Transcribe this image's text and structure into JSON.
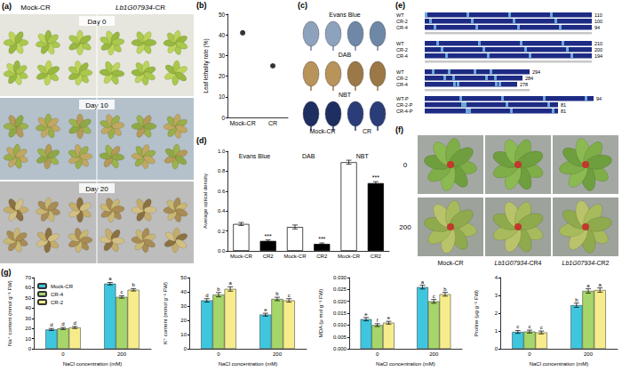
{
  "chart_data": [
    {
      "type": "scatter",
      "annotations": [
        "(b)"
      ],
      "categories": [
        "Mock-CR",
        "CR"
      ],
      "values": [
        41,
        25
      ],
      "color": "#000000",
      "marker": "circle",
      "ylabel": "Leaf lethality rate (%)",
      "ylim": [
        0,
        50
      ],
      "yticks": [
        0,
        10,
        20,
        30,
        40,
        50
      ],
      "grid": false
    },
    {
      "type": "bar",
      "annotations": [
        "(d)"
      ],
      "categories": [
        "Mock-CR",
        "CR2",
        "Mock-CR",
        "CR2",
        "Mock-CR",
        "CR2"
      ],
      "groups": [
        "Evans Blue",
        "DAB",
        "NBT"
      ],
      "values": [
        0.27,
        0.1,
        0.24,
        0.07,
        0.89,
        0.68
      ],
      "errors": [
        0.015,
        0.01,
        0.02,
        0.01,
        0.02,
        0.015
      ],
      "significance": [
        null,
        "***",
        null,
        "***",
        null,
        "***"
      ],
      "colors": [
        "#ffffff",
        "#000000",
        "#ffffff",
        "#000000",
        "#ffffff",
        "#000000"
      ],
      "ylabel": "Average optical density",
      "ylim": [
        0,
        1
      ],
      "yticks": [
        {
          "value": 0,
          "label": "0.0"
        },
        0.2,
        0.4,
        0.6,
        0.8,
        {
          "value": 1,
          "label": "1.0"
        }
      ],
      "grid": false
    },
    {
      "type": "bar",
      "annotations": [
        "(g)"
      ],
      "categories": [
        "0",
        "200"
      ],
      "xlabel": "NaCl concentration (mM)",
      "ylabel": "Na⁺ content (mmol g⁻¹ FW)",
      "ylim": [
        0,
        70
      ],
      "yticks": [
        0,
        10,
        20,
        30,
        40,
        50,
        60,
        70
      ],
      "legend": "upper left",
      "grid": false,
      "series": [
        {
          "name": "Mock-CR",
          "color": "#3fc6df",
          "values": [
            19,
            64
          ],
          "errors": [
            1,
            1.2
          ],
          "letters": [
            "d",
            "a"
          ]
        },
        {
          "name": "CR-4",
          "color": "#a6d66a",
          "values": [
            20,
            51
          ],
          "errors": [
            1,
            1.2
          ],
          "letters": [
            "d",
            "c"
          ]
        },
        {
          "name": "CR-2",
          "color": "#f6ec8c",
          "values": [
            21,
            58
          ],
          "errors": [
            1,
            1.2
          ],
          "letters": [
            "d",
            "b"
          ]
        }
      ]
    },
    {
      "type": "bar",
      "categories": [
        "0",
        "200"
      ],
      "xlabel": "NaCl concentration (mM)",
      "ylabel": "K⁺ content (mmol g⁻¹ FW)",
      "ylim": [
        0,
        50
      ],
      "yticks": [
        0,
        10,
        20,
        30,
        40,
        50
      ],
      "grid": false,
      "series": [
        {
          "name": "Mock-CR",
          "color": "#3fc6df",
          "values": [
            34,
            24
          ],
          "errors": [
            1.2,
            1
          ],
          "letters": [
            "d",
            "e"
          ]
        },
        {
          "name": "CR-4",
          "color": "#a6d66a",
          "values": [
            38,
            35
          ],
          "errors": [
            1.5,
            1.2
          ],
          "letters": [
            "b",
            "b"
          ]
        },
        {
          "name": "CR-2",
          "color": "#f6ec8c",
          "values": [
            42,
            34
          ],
          "errors": [
            1.5,
            1.2
          ],
          "letters": [
            "a",
            "c"
          ]
        }
      ]
    },
    {
      "type": "bar",
      "categories": [
        "0",
        "200"
      ],
      "xlabel": "NaCl concentration (mM)",
      "ylabel": "MDA (μ mol g⁻¹ FW)",
      "ylim": [
        0,
        0.03
      ],
      "yticks": [
        {
          "value": 0,
          "label": "0.000"
        },
        0.005,
        {
          "value": 0.01,
          "label": "0.010"
        },
        0.015,
        {
          "value": 0.02,
          "label": "0.020"
        },
        0.025,
        {
          "value": 0.03,
          "label": "0.030"
        }
      ],
      "grid": false,
      "series": [
        {
          "name": "Mock-CR",
          "color": "#3fc6df",
          "values": [
            0.0125,
            0.026
          ],
          "errors": [
            0.0007,
            0.0008
          ],
          "letters": [
            "e",
            "a"
          ]
        },
        {
          "name": "CR-4",
          "color": "#a6d66a",
          "values": [
            0.01,
            0.02
          ],
          "errors": [
            0.0006,
            0.0008
          ],
          "letters": [
            "f",
            "c"
          ]
        },
        {
          "name": "CR-2",
          "color": "#f6ec8c",
          "values": [
            0.011,
            0.023
          ],
          "errors": [
            0.0006,
            0.0008
          ],
          "letters": [
            "e",
            "b"
          ]
        }
      ]
    },
    {
      "type": "bar",
      "categories": [
        "0",
        "200"
      ],
      "xlabel": "NaCl concentration (mM)",
      "ylabel": "Proline (μg g⁻¹ FW)",
      "ylim": [
        0,
        4
      ],
      "yticks": [
        0,
        1,
        2,
        3,
        4
      ],
      "grid": false,
      "series": [
        {
          "name": "Mock-CR",
          "color": "#3fc6df",
          "values": [
            0.95,
            2.45
          ],
          "errors": [
            0.08,
            0.12
          ],
          "letters": [
            "c",
            "b"
          ]
        },
        {
          "name": "CR-4",
          "color": "#a6d66a",
          "values": [
            0.97,
            3.25
          ],
          "errors": [
            0.08,
            0.12
          ],
          "letters": [
            "c",
            "a"
          ]
        },
        {
          "name": "CR-2",
          "color": "#f6ec8c",
          "values": [
            0.92,
            3.3
          ],
          "errors": [
            0.08,
            0.12
          ],
          "letters": [
            "c",
            "a"
          ]
        }
      ]
    }
  ],
  "panels": {
    "a": {
      "label": "(a)",
      "columns": [
        "Mock-CR",
        "Lb1G07934-CR"
      ],
      "days": [
        "Day 0",
        "Day 10",
        "Day 20"
      ]
    },
    "c": {
      "label": "(c)",
      "stains": [
        "Evans Blue",
        "DAB",
        "NBT"
      ],
      "columns": [
        "Mock-CR",
        "CR"
      ]
    },
    "e": {
      "label": "(e)",
      "blocks": [
        {
          "rows": [
            "WT",
            "CR-2",
            "CR-4"
          ],
          "ends": [
            110,
            100,
            94
          ]
        },
        {
          "rows": [
            "WT",
            "CR-2",
            "CR-4"
          ],
          "ends": [
            210,
            200,
            194
          ]
        },
        {
          "rows": [
            "WT",
            "CR-2",
            "CR-4"
          ],
          "ends": [
            294,
            284,
            278
          ]
        },
        {
          "rows": [
            "WT-P",
            "CR-2-P",
            "CR-4-P"
          ],
          "ends": [
            94,
            81,
            81
          ]
        }
      ]
    },
    "f": {
      "label": "(f)",
      "rows": [
        "0",
        "200"
      ],
      "columns": [
        "Mock-CR",
        "Lb1G07934-CR4",
        "Lb1G07934-CR2"
      ]
    }
  }
}
